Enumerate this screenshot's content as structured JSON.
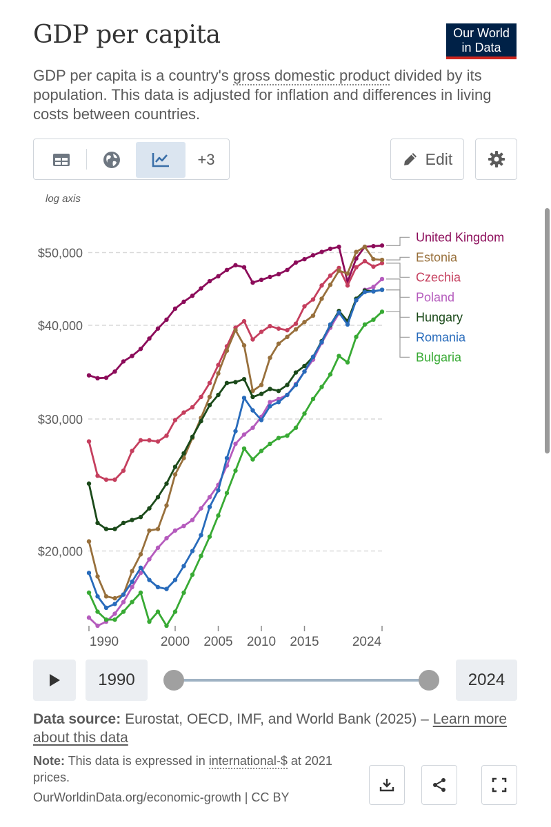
{
  "header": {
    "title": "GDP per capita",
    "logo_line1": "Our World",
    "logo_line2": "in Data",
    "subtitle_pre": "GDP per capita is a country's ",
    "subtitle_link": "gross domestic product",
    "subtitle_post": " divided by its population. This data is adjusted for inflation and differences in living costs between countries."
  },
  "toolbar": {
    "tabs": [
      {
        "name": "table",
        "icon": "table-icon",
        "active": false
      },
      {
        "name": "map",
        "icon": "globe-icon",
        "active": false
      },
      {
        "name": "chart",
        "icon": "line-chart-icon",
        "active": true
      }
    ],
    "more_label": "+3",
    "edit_label": "Edit",
    "edit_icon": "pencil-icon",
    "settings_icon": "gear-icon"
  },
  "chart_data": {
    "type": "line",
    "title": "GDP per capita",
    "yscale": "log",
    "axis_note": "log axis",
    "ylim": [
      16000,
      56000
    ],
    "yticks": [
      {
        "value": 20000,
        "label": "$20,000"
      },
      {
        "value": 30000,
        "label": "$30,000"
      },
      {
        "value": 40000,
        "label": "$40,000"
      },
      {
        "value": 50000,
        "label": "$50,000"
      }
    ],
    "xticks": [
      {
        "value": 1990,
        "label": "1990"
      },
      {
        "value": 2000,
        "label": "2000"
      },
      {
        "value": 2005,
        "label": "2005"
      },
      {
        "value": 2010,
        "label": "2010"
      },
      {
        "value": 2015,
        "label": "2015"
      },
      {
        "value": 2024,
        "label": "2024"
      }
    ],
    "x": [
      1990,
      1991,
      1992,
      1993,
      1994,
      1995,
      1996,
      1997,
      1998,
      1999,
      2000,
      2001,
      2002,
      2003,
      2004,
      2005,
      2006,
      2007,
      2008,
      2009,
      2010,
      2011,
      2012,
      2013,
      2014,
      2015,
      2016,
      2017,
      2018,
      2019,
      2020,
      2021,
      2022,
      2023,
      2024
    ],
    "series": [
      {
        "name": "United Kingdom",
        "color": "#8c0c5a",
        "values": [
          34300,
          34000,
          34050,
          34700,
          35800,
          36400,
          37200,
          38400,
          39600,
          40700,
          42100,
          43000,
          43800,
          44800,
          45800,
          46500,
          47400,
          48100,
          47800,
          45600,
          46000,
          46400,
          46800,
          47400,
          48500,
          49000,
          49600,
          50100,
          50600,
          50900,
          45700,
          49100,
          50900,
          51000,
          51100
        ]
      },
      {
        "name": "Czechia",
        "color": "#c53f5e",
        "values": [
          28000,
          25200,
          24900,
          24900,
          25600,
          27200,
          28100,
          28100,
          28000,
          28500,
          29900,
          30600,
          31100,
          32100,
          33500,
          35400,
          37500,
          39700,
          40500,
          38300,
          39200,
          39900,
          39600,
          39400,
          40200,
          42400,
          43300,
          45200,
          46600,
          47700,
          45200,
          47800,
          48700,
          47900,
          48400
        ]
      },
      {
        "name": "Poland",
        "color": "#b55bbd",
        "values": [
          16300,
          15900,
          16100,
          16500,
          17100,
          17900,
          18700,
          19500,
          20200,
          20800,
          21300,
          21600,
          22000,
          22800,
          23600,
          24500,
          26000,
          27800,
          28600,
          29200,
          30200,
          31600,
          31900,
          32300,
          33400,
          34700,
          36000,
          37900,
          39700,
          41500,
          40500,
          43200,
          44600,
          45000,
          46100
        ]
      },
      {
        "name": "Estonia",
        "color": "#98703c",
        "values": [
          20600,
          18500,
          17400,
          17300,
          17500,
          18800,
          19800,
          21300,
          21400,
          23000,
          25300,
          26600,
          28300,
          30100,
          32100,
          34500,
          37000,
          39400,
          37600,
          32700,
          33300,
          36200,
          37800,
          38600,
          39500,
          40400,
          41200,
          43400,
          45300,
          47300,
          46900,
          50100,
          50900,
          49000,
          48900
        ]
      },
      {
        "name": "Hungary",
        "color": "#1b4a1a",
        "values": [
          24600,
          21800,
          21400,
          21400,
          21800,
          22000,
          22200,
          22800,
          23600,
          24600,
          25900,
          27000,
          28400,
          29800,
          31300,
          32300,
          33500,
          33600,
          33900,
          32100,
          32400,
          32900,
          32700,
          33300,
          34600,
          35300,
          36300,
          38100,
          40000,
          41800,
          40500,
          43400,
          44500,
          44400,
          44600
        ]
      },
      {
        "name": "Romania",
        "color": "#286bbb",
        "values": [
          18700,
          17400,
          16800,
          17000,
          17500,
          18200,
          19000,
          18300,
          17900,
          17800,
          18300,
          19100,
          20000,
          21000,
          22900,
          24100,
          26600,
          28900,
          32000,
          30800,
          29900,
          31200,
          31600,
          32300,
          33300,
          34700,
          36300,
          38000,
          40100,
          41600,
          40100,
          43200,
          44300,
          44400,
          44600
        ]
      },
      {
        "name": "Bulgaria",
        "color": "#38aa34",
        "values": [
          17600,
          16600,
          16200,
          16200,
          16600,
          17100,
          17600,
          16100,
          16600,
          15900,
          16600,
          17600,
          18600,
          19700,
          20900,
          22300,
          23900,
          25600,
          27400,
          26500,
          27200,
          27800,
          28300,
          28500,
          29200,
          30500,
          31900,
          33100,
          34400,
          36400,
          35700,
          38600,
          40100,
          40700,
          41700
        ]
      }
    ]
  },
  "controls": {
    "play_icon": "play-icon",
    "start_year": "1990",
    "end_year": "2024"
  },
  "footer": {
    "source_label": "Data source:",
    "source_text": "Eurostat, OECD, IMF, and World Bank (2025) – ",
    "source_link": "Learn more about this data",
    "note_label": "Note:",
    "note_pre": "This data is expressed in ",
    "note_link": "international-$",
    "note_post": " at 2021 prices.",
    "site": "OurWorldinData.org/economic-growth | CC BY",
    "download_icon": "download-icon",
    "share_icon": "share-icon",
    "fullscreen_icon": "fullscreen-icon"
  }
}
